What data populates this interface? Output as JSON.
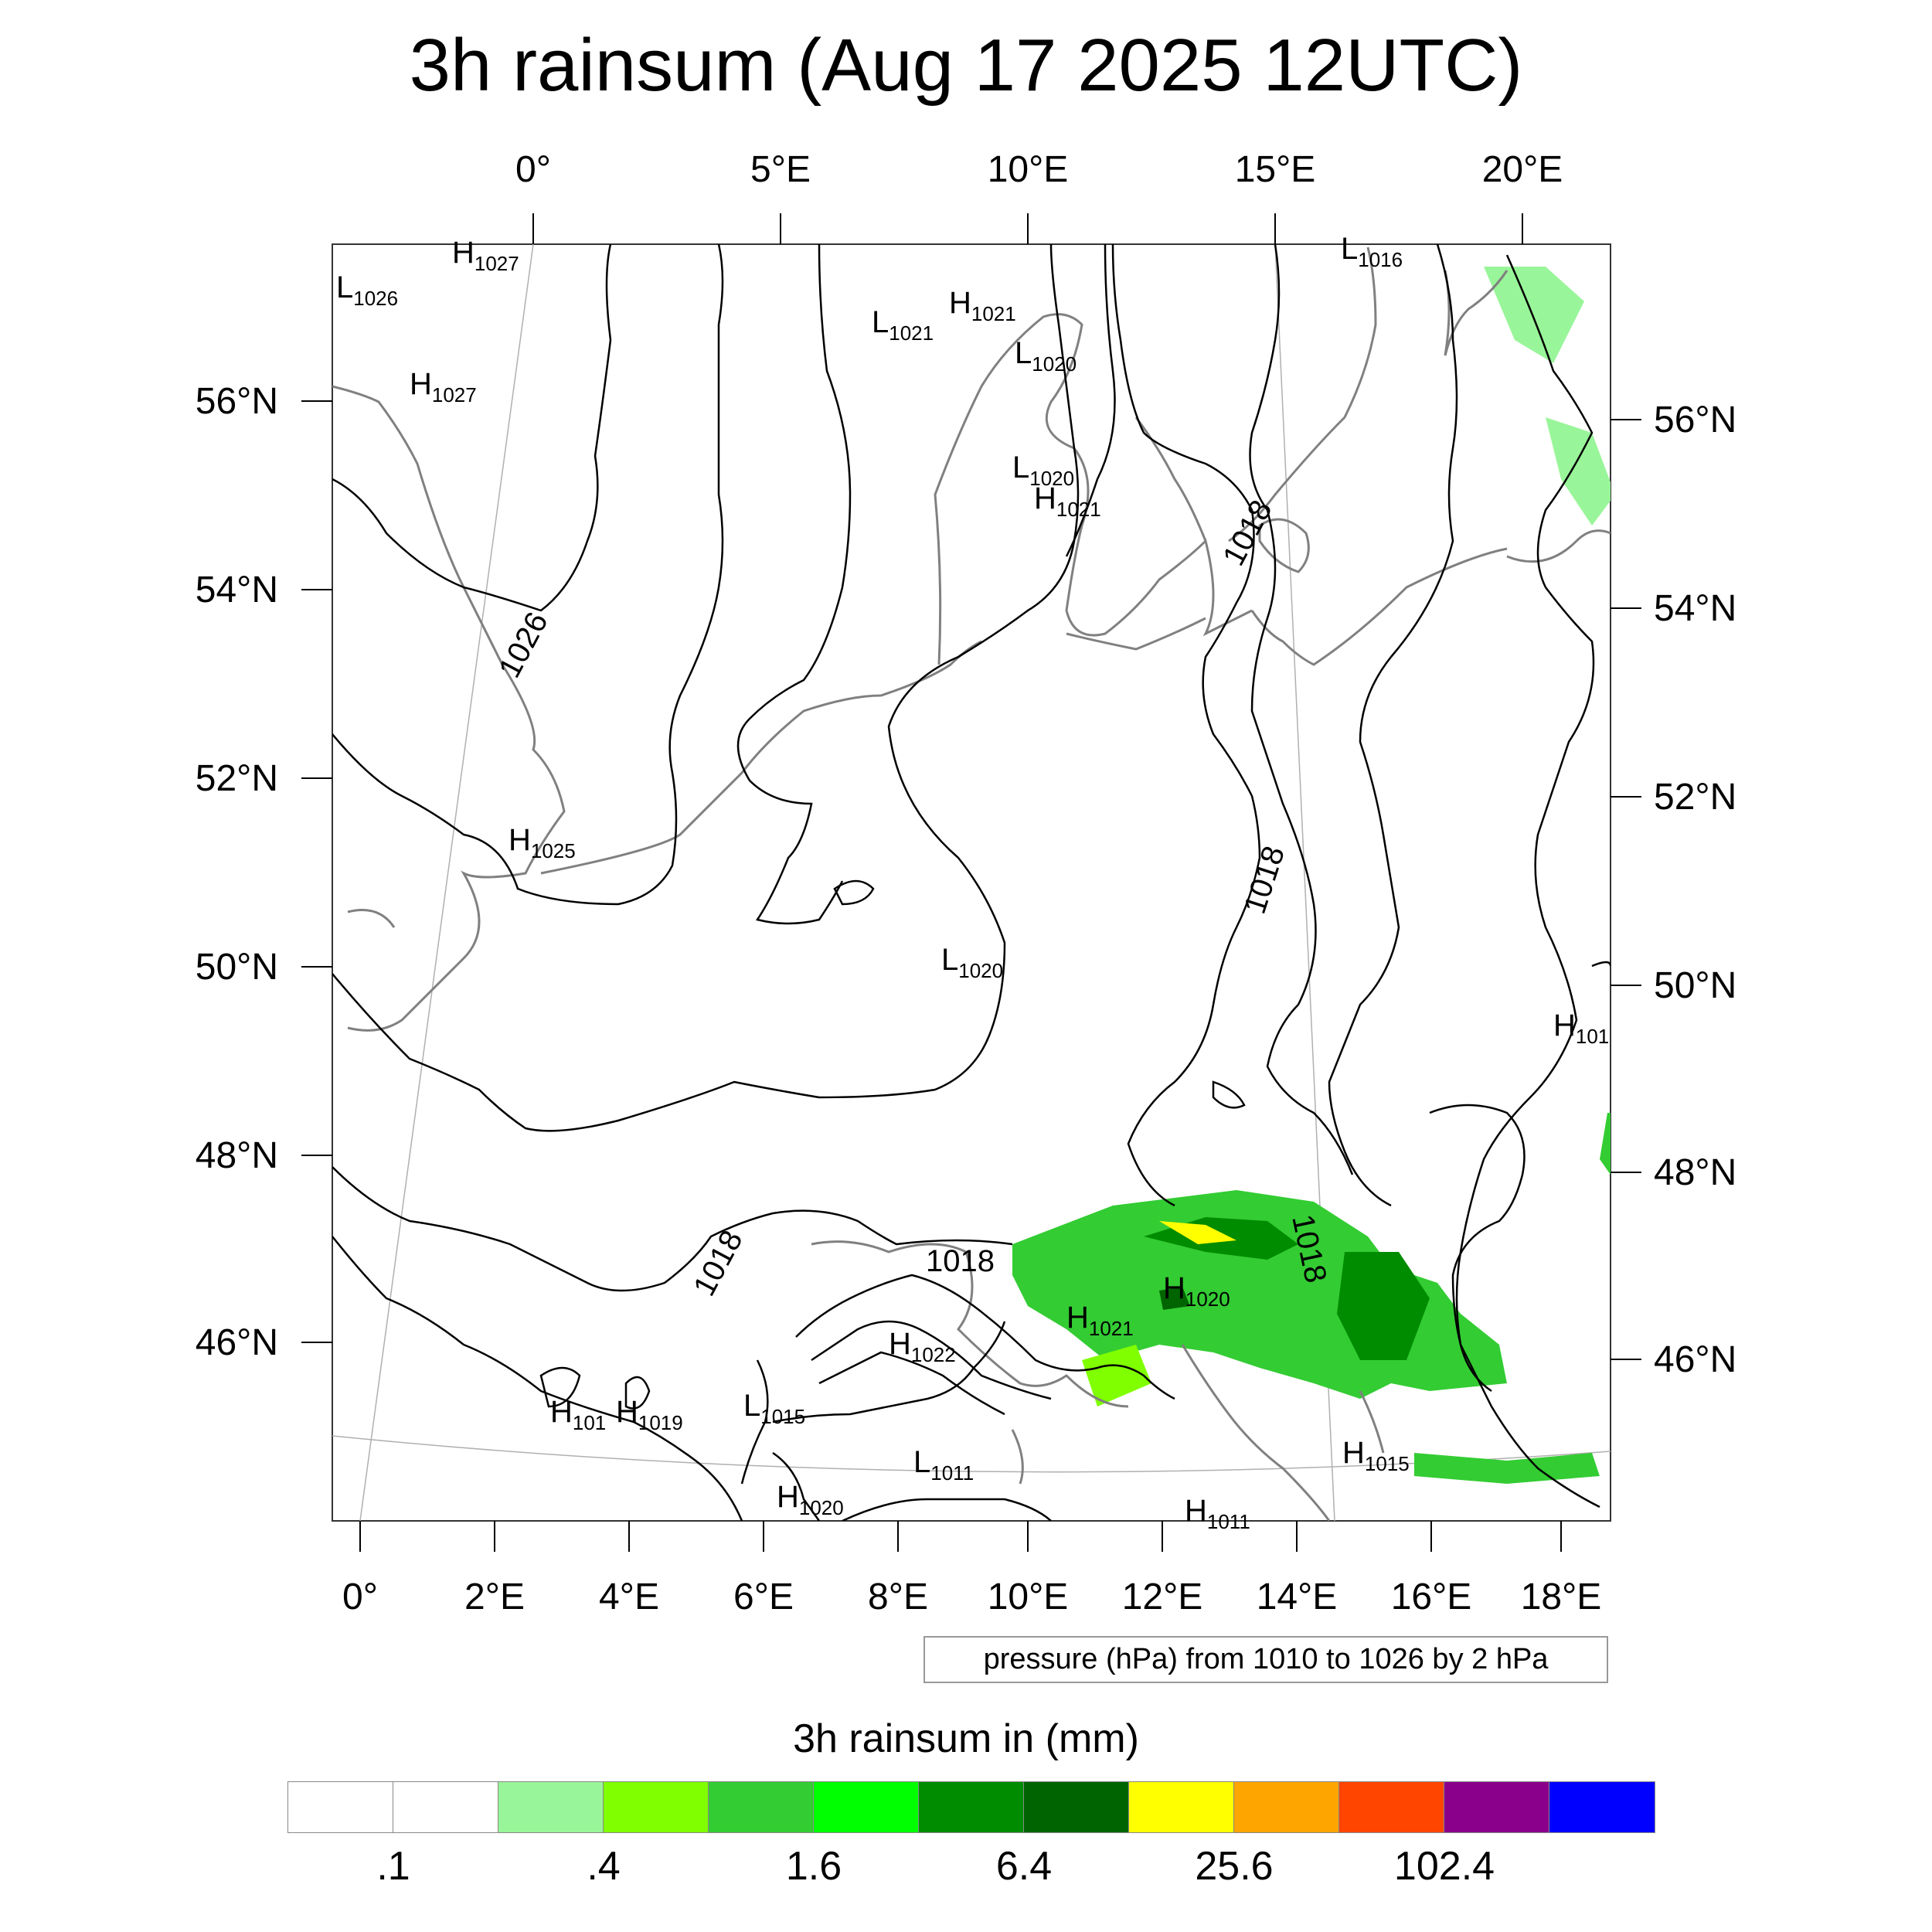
{
  "title": "3h rainsum (Aug 17 2025 12UTC)",
  "axes": {
    "top_lon_labels": [
      "0°",
      "5°E",
      "10°E",
      "15°E",
      "20°E"
    ],
    "bottom_lon_labels": [
      "0°",
      "2°E",
      "4°E",
      "6°E",
      "8°E",
      "10°E",
      "12°E",
      "14°E",
      "16°E",
      "18°E"
    ],
    "left_lat_labels": [
      "56°N",
      "54°N",
      "52°N",
      "50°N",
      "48°N",
      "46°N"
    ],
    "right_lat_labels": [
      "56°N",
      "54°N",
      "52°N",
      "50°N",
      "48°N",
      "46°N"
    ]
  },
  "pressure_markers": [
    {
      "type": "H",
      "value": "1027"
    },
    {
      "type": "L",
      "value": "1026"
    },
    {
      "type": "H",
      "value": "1027"
    },
    {
      "type": "L",
      "value": "1016"
    },
    {
      "type": "L",
      "value": "1021"
    },
    {
      "type": "H",
      "value": "1021"
    },
    {
      "type": "L",
      "value": "1020"
    },
    {
      "type": "L",
      "value": "1020"
    },
    {
      "type": "H",
      "value": "1021"
    },
    {
      "type": "H",
      "value": "1025"
    },
    {
      "type": "L",
      "value": "1020"
    },
    {
      "type": "H",
      "value": "101"
    },
    {
      "type": "H",
      "value": "1020"
    },
    {
      "type": "H",
      "value": "1021"
    },
    {
      "type": "H",
      "value": "1022"
    },
    {
      "type": "H",
      "value": "101"
    },
    {
      "type": "H",
      "value": "1019"
    },
    {
      "type": "L",
      "value": "1015"
    },
    {
      "type": "L",
      "value": "1011"
    },
    {
      "type": "H",
      "value": "1020"
    },
    {
      "type": "H",
      "value": "1015"
    },
    {
      "type": "H",
      "value": "1011"
    }
  ],
  "contour_labels": [
    "1026",
    "1018",
    "1018",
    "1018",
    "1018",
    "1018"
  ],
  "info_box": "pressure (hPa) from 1010 to 1026 by 2 hPa",
  "legend": {
    "title": "3h rainsum in (mm)",
    "colors": [
      "#ffffff",
      "#ffffff",
      "#99f599",
      "#80ff00",
      "#33cc33",
      "#00ff00",
      "#008c00",
      "#006400",
      "#ffff00",
      "#ffa500",
      "#ff4500",
      "#8b008b",
      "#0000ff"
    ],
    "labels": [
      ".1",
      ".4",
      "1.6",
      "6.4",
      "25.6",
      "102.4"
    ]
  },
  "colors": {
    "coastline": "#808080",
    "isobar": "#000000",
    "grid": "#b0b0b0"
  }
}
